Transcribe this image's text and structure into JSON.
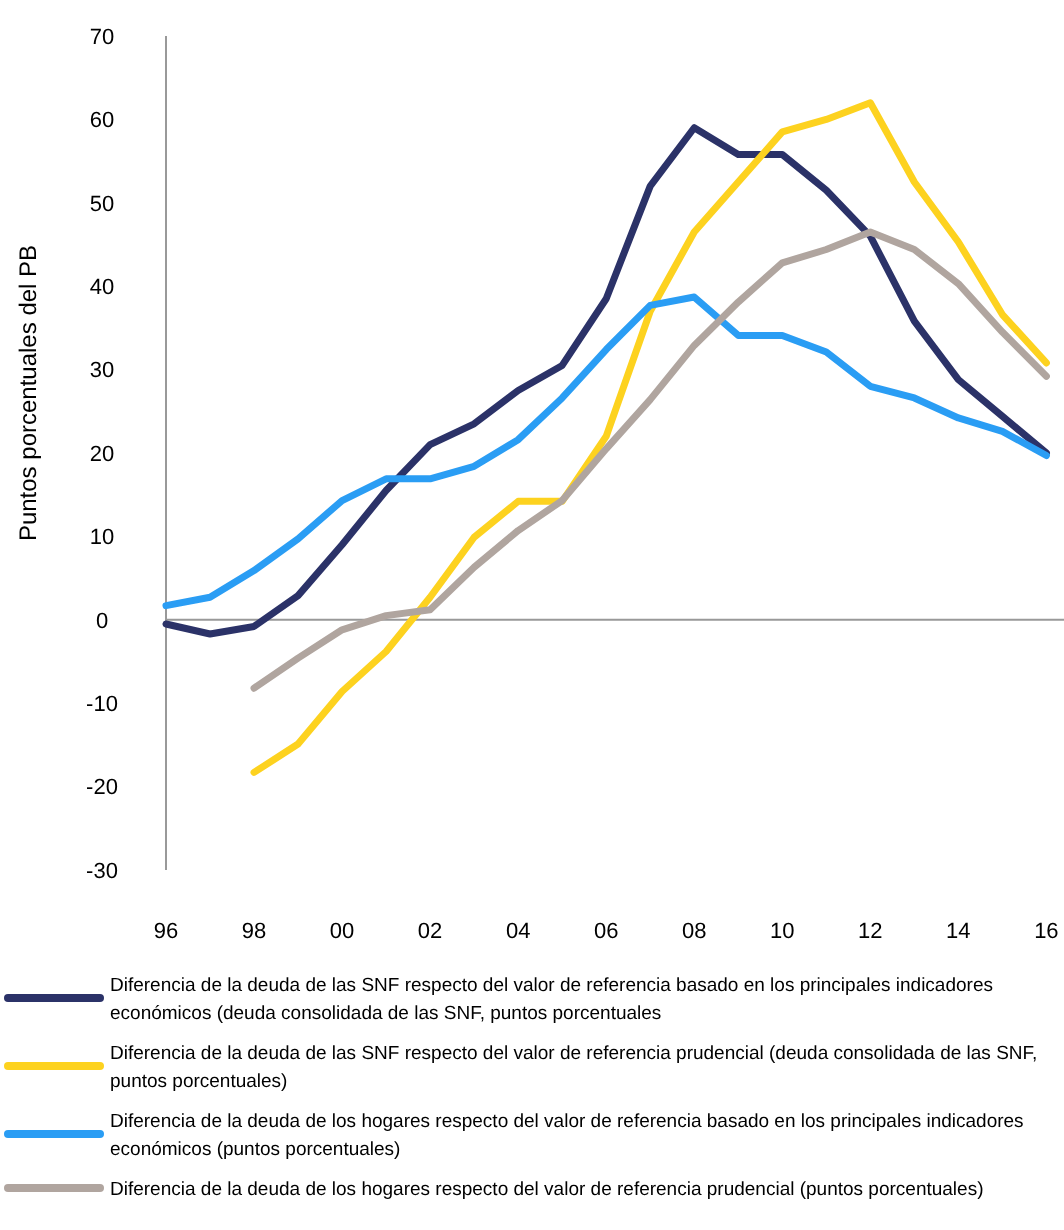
{
  "chart_data": {
    "type": "line",
    "ylabel": "Puntos porcentuales del PB",
    "x": [
      1996,
      1997,
      1998,
      1999,
      2000,
      2001,
      2002,
      2003,
      2004,
      2005,
      2006,
      2007,
      2008,
      2009,
      2010,
      2011,
      2012,
      2013,
      2014,
      2015,
      2016
    ],
    "xlim": [
      1996,
      2016.4
    ],
    "xticks": [
      {
        "value": 1996,
        "label": "96"
      },
      {
        "value": 1998,
        "label": "98"
      },
      {
        "value": 2000,
        "label": "00"
      },
      {
        "value": 2002,
        "label": "02"
      },
      {
        "value": 2004,
        "label": "04"
      },
      {
        "value": 2006,
        "label": "06"
      },
      {
        "value": 2008,
        "label": "08"
      },
      {
        "value": 2010,
        "label": "10"
      },
      {
        "value": 2012,
        "label": "12"
      },
      {
        "value": 2014,
        "label": "14"
      },
      {
        "value": 2016,
        "label": "16"
      }
    ],
    "ylim": [
      -30,
      70
    ],
    "yticks": [
      -30,
      -20,
      -10,
      0,
      10,
      20,
      30,
      40,
      50,
      60,
      70
    ],
    "ref_lines": [
      {
        "axis": "y",
        "value": 0,
        "color": "#999999"
      }
    ],
    "legend": "bottom",
    "marker": "none",
    "line_style": "solid",
    "series": [
      {
        "name": "Diferencia de la deuda de las SNF respecto del valor de referencia basado en los principales indicadores económicos (deuda consolidada de las SNF, puntos porcentuales",
        "color": "#2b3268",
        "values": [
          -0.5,
          -1.7,
          -0.8,
          2.9,
          9,
          15.5,
          21,
          23.5,
          27.5,
          30.5,
          38.5,
          52,
          59,
          55.8,
          55.8,
          51.5,
          46,
          35.8,
          28.8,
          24.4,
          20
        ]
      },
      {
        "name": "Diferencia de la deuda de las SNF respecto del valor de referencia prudencial (deuda consolidada de las SNF, puntos porcentuales)",
        "color": "#fdd21f",
        "values": [
          null,
          null,
          -18.3,
          -14.9,
          -8.6,
          -3.8,
          2.7,
          9.9,
          14.2,
          14.2,
          22,
          37,
          46.5,
          52.5,
          58.5,
          60,
          62,
          52.5,
          45.3,
          36.6,
          30.8
        ]
      },
      {
        "name": "Diferencia de la deuda de los hogares respecto del valor de referencia basado en los principales indicadores económicos (puntos porcentuales)",
        "color": "#2a9df4",
        "values": [
          1.7,
          2.7,
          5.9,
          9.7,
          14.3,
          16.9,
          16.9,
          18.4,
          21.6,
          26.6,
          32.4,
          37.7,
          38.7,
          34.1,
          34.1,
          32.1,
          28,
          26.6,
          24.2,
          22.6,
          19.7
        ]
      },
      {
        "name": "Diferencia de la deuda de los hogares respecto del valor de referencia prudencial (puntos porcentuales)",
        "color": "#b0a59f",
        "values": [
          null,
          null,
          -8.2,
          -4.6,
          -1.2,
          0.5,
          1.2,
          6.3,
          10.7,
          14.3,
          20.5,
          26.4,
          32.9,
          38.1,
          42.8,
          44.4,
          46.5,
          44.4,
          40.3,
          34.5,
          29.2
        ]
      }
    ]
  }
}
